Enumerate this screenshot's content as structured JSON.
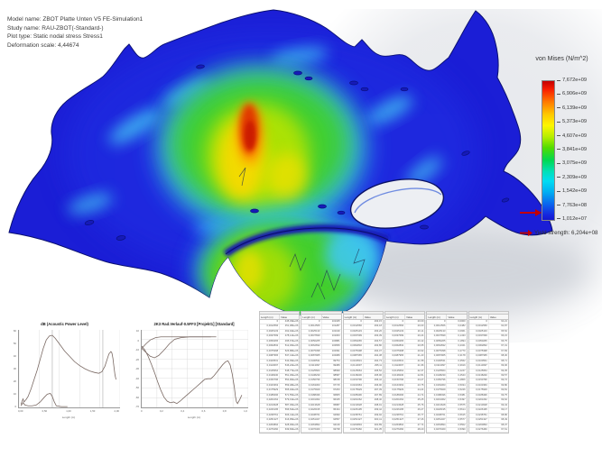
{
  "header": {
    "lines": [
      "Model name: ZBOT Platte Unten V5 FE-Simulation1",
      "Study name: RAU-ZBOT(-Standard-)",
      "Plot type: Static nodal stress Stress1",
      "Deformation scale: 4,44674"
    ]
  },
  "legend": {
    "title": "von Mises (N/m^2)",
    "ticks": [
      "7,672e+09",
      "6,906e+09",
      "6,139e+09",
      "5,373e+09",
      "4,607e+09",
      "3,841e+09",
      "3,075e+09",
      "2,309e+09",
      "1,542e+09",
      "7,763e+08",
      "1,012e+07"
    ],
    "yield_label": "Yield strength: 6,204e+08",
    "arrow_color": "#c40000"
  },
  "colors": {
    "plate_blue": "#1b1ed6",
    "edge_blue": "#0a0f70",
    "hot_red": "#cc1c00",
    "warm_yellow": "#ffd900",
    "mid_green": "#3fd028",
    "cool_cyan": "#35c8f0",
    "curve_gray": "#7a6963"
  },
  "charts": [
    {
      "title": "dB (Acoustic Power Level)",
      "xlabel": "Length (m)",
      "x_ticks": [
        "0,00",
        "0,50",
        "1,00",
        "1,50",
        "2,00"
      ],
      "y_ticks": [
        "60",
        "50",
        "40",
        "30",
        "20",
        "10",
        "0"
      ],
      "series": [
        {
          "name": "power-level",
          "points": [
            [
              2,
              96
            ],
            [
              4,
              89
            ],
            [
              5,
              93
            ],
            [
              7,
              90
            ],
            [
              9,
              86
            ],
            [
              12,
              76
            ],
            [
              15,
              64
            ],
            [
              18,
              52
            ],
            [
              21,
              38
            ],
            [
              24,
              24
            ],
            [
              27,
              13
            ],
            [
              30,
              8
            ],
            [
              33,
              7
            ],
            [
              36,
              11
            ],
            [
              40,
              18
            ],
            [
              45,
              27
            ],
            [
              50,
              34
            ],
            [
              55,
              41
            ],
            [
              60,
              46
            ],
            [
              65,
              50
            ],
            [
              70,
              53
            ],
            [
              75,
              55
            ],
            [
              79,
              56
            ],
            [
              82,
              54
            ],
            [
              85,
              47
            ],
            [
              87,
              39
            ],
            [
              89,
              31
            ],
            [
              91,
              28
            ],
            [
              92,
              30
            ],
            [
              93,
              37
            ],
            [
              94,
              48
            ],
            [
              95,
              58
            ],
            [
              96,
              64
            ]
          ]
        },
        {
          "name": "secondary",
          "points": [
            [
              2,
              98
            ],
            [
              4,
              94
            ],
            [
              6,
              97
            ],
            [
              9,
              98
            ],
            [
              13,
              98
            ],
            [
              17,
              97
            ],
            [
              21,
              93
            ],
            [
              25,
              87
            ],
            [
              28,
              83
            ],
            [
              31,
              82
            ],
            [
              33,
              86
            ],
            [
              35,
              93
            ],
            [
              37,
              98
            ],
            [
              42,
              99
            ],
            [
              48,
              99
            ]
          ]
        }
      ]
    },
    {
      "title": "2K3 Rad.Verlauf-0.5FF3 [Projekt1] [Standard]",
      "xlabel": "Length (m)",
      "x_ticks": [
        "0",
        "0,2",
        "0,4",
        "0,6",
        "0,8",
        "1,0"
      ],
      "y_ticks": [
        "10",
        "0",
        "-10",
        "-20",
        "-30",
        "-40",
        "-50",
        "-60",
        "-70"
      ],
      "legend": "dB",
      "series": [
        {
          "name": "trace-a",
          "points": [
            [
              0,
              24
            ],
            [
              4,
              18
            ],
            [
              8,
              13
            ],
            [
              13,
              10
            ],
            [
              18,
              9
            ],
            [
              25,
              9
            ],
            [
              32,
              9
            ],
            [
              40,
              9
            ],
            [
              50,
              9
            ],
            [
              60,
              9
            ],
            [
              70,
              9
            ]
          ]
        },
        {
          "name": "trace-b",
          "points": [
            [
              0,
              24
            ],
            [
              4,
              29
            ],
            [
              8,
              34
            ],
            [
              12,
              36
            ],
            [
              16,
              33
            ],
            [
              21,
              26
            ],
            [
              26,
              18
            ],
            [
              31,
              12
            ],
            [
              37,
              10
            ],
            [
              45,
              9
            ],
            [
              55,
              9
            ],
            [
              65,
              9
            ]
          ]
        },
        {
          "name": "trace-c",
          "points": [
            [
              0,
              21
            ],
            [
              3,
              26
            ],
            [
              6,
              34
            ],
            [
              9,
              44
            ],
            [
              12,
              55
            ],
            [
              15,
              67
            ],
            [
              18,
              78
            ],
            [
              21,
              87
            ],
            [
              24,
              92
            ],
            [
              27,
              94
            ],
            [
              30,
              93
            ],
            [
              33,
              95
            ],
            [
              36,
              92
            ],
            [
              40,
              87
            ],
            [
              45,
              81
            ],
            [
              50,
              75
            ],
            [
              55,
              69
            ],
            [
              59,
              64
            ],
            [
              62,
              63
            ],
            [
              65,
              63
            ],
            [
              68,
              59
            ],
            [
              72,
              52
            ],
            [
              76,
              45
            ],
            [
              79,
              41
            ],
            [
              81,
              40
            ],
            [
              83,
              45
            ],
            [
              85,
              57
            ],
            [
              87,
              74
            ],
            [
              88,
              86
            ],
            [
              89,
              93
            ],
            [
              90,
              95
            ],
            [
              92,
              90
            ],
            [
              94,
              84
            ]
          ]
        }
      ]
    }
  ],
  "table": {
    "sub_headers": [
      "Length (m)",
      "Value"
    ],
    "lengths": [
      "0",
      "0,0012566",
      "0,0025133",
      "0,0037699",
      "0,0050265",
      "0,0062832",
      "0,0075398",
      "0,0087965",
      "0,0100531",
      "0,0113097",
      "0,0125664",
      "0,0138230",
      "0,0150796",
      "0,0163363",
      "0,0175929",
      "0,0188496",
      "0,0201062",
      "0,0213628",
      "0,0226195",
      "0,0238761",
      "0,0251327",
      "0,0263894",
      "0,0276460",
      "0,0289027"
    ],
    "groups": [
      {
        "title": "Acoustic Power (dB)",
        "values": [
          "445,33E+06",
          "451,08E+06",
          "462,94E+06",
          "478,12E+06",
          "495,67E+06",
          "512,30E+06",
          "526,88E+06",
          "537,41E+06",
          "543,09E+06",
          "546,22E+06",
          "548,77E+06",
          "551,36E+06",
          "554,90E+06",
          "559,48E+06",
          "565,02E+06",
          "571,55E+06",
          "579,01E+06",
          "587,36E+06",
          "596,52E+06",
          "606,41E+06",
          "616,95E+06",
          "628,06E+06",
          "639,66E+06",
          "651,68E+06"
        ]
      },
      {
        "title": "Pressure (Pa)",
        "values": [
          "101325",
          "101287",
          "101199",
          "101063",
          "100881",
          "100656",
          "100391",
          "100089",
          "99754",
          "99389",
          "98999",
          "98587",
          "98158",
          "97715",
          "97263",
          "96805",
          "96345",
          "95887",
          "95434",
          "94990",
          "94557",
          "94139",
          "93738",
          "93356"
        ]
      },
      {
        "title": "Temperature (K)",
        "values": [
          "293,15",
          "293,18",
          "293,26",
          "293,39",
          "293,57",
          "293,80",
          "294,07",
          "294,38",
          "294,73",
          "295,11",
          "295,52",
          "295,96",
          "296,42",
          "296,90",
          "297,39",
          "297,89",
          "298,40",
          "298,91",
          "299,42",
          "299,92",
          "300,41",
          "300,89",
          "301,35",
          "301,79"
        ]
      },
      {
        "title": "Temperature (°C)",
        "values": [
          "20,00",
          "20,03",
          "20,11",
          "20,24",
          "20,42",
          "20,65",
          "20,92",
          "21,23",
          "21,58",
          "21,96",
          "22,37",
          "22,81",
          "23,27",
          "23,75",
          "24,24",
          "24,74",
          "25,25",
          "25,76",
          "26,27",
          "26,77",
          "27,26",
          "27,74",
          "28,20",
          "28,64"
        ]
      },
      {
        "title": "Velocity (m/s)",
        "values": [
          "0,0000",
          "0,0482",
          "0,0961",
          "0,1433",
          "0,1894",
          "0,2341",
          "0,2770",
          "0,3178",
          "0,3562",
          "0,3919",
          "0,4247",
          "0,4543",
          "0,4806",
          "0,5034",
          "0,5226",
          "0,5381",
          "0,5497",
          "0,5575",
          "0,5614",
          "0,5615",
          "0,5577",
          "0,5502",
          "0,5390",
          "0,5242"
        ]
      },
      {
        "title": "Sound Level (dB)",
        "values": [
          "64,21",
          "64,87",
          "65,52",
          "66,15",
          "66,75",
          "67,31",
          "67,83",
          "68,30",
          "68,71",
          "69,06",
          "69,35",
          "69,57",
          "69,72",
          "69,80",
          "69,81",
          "69,75",
          "69,62",
          "69,43",
          "69,17",
          "68,86",
          "68,49",
          "68,07",
          "67,61",
          "67,10"
        ]
      }
    ]
  }
}
